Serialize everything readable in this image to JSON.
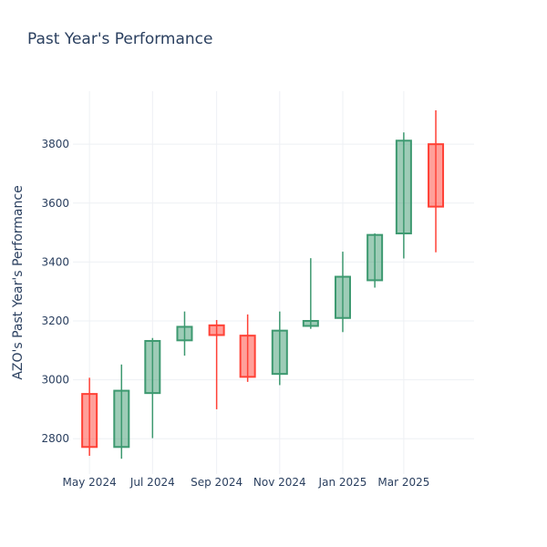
{
  "chart_data": {
    "type": "candlestick",
    "title": "Past Year's Performance",
    "xlabel": "",
    "ylabel": "AZO's Past Year's Performance",
    "ylim": [
      2680,
      3980
    ],
    "yticks": [
      2800,
      3000,
      3200,
      3400,
      3600,
      3800
    ],
    "xlim": [
      "2024-04-15",
      "2025-05-08"
    ],
    "xticks": [
      {
        "date": "2024-05-01",
        "label": "May 2024"
      },
      {
        "date": "2024-07-01",
        "label": "Jul 2024"
      },
      {
        "date": "2024-09-01",
        "label": "Sep 2024"
      },
      {
        "date": "2024-11-01",
        "label": "Nov 2024"
      },
      {
        "date": "2025-01-01",
        "label": "Jan 2025"
      },
      {
        "date": "2025-03-01",
        "label": "Mar 2025"
      }
    ],
    "grid": true,
    "increasing_color": "#3d9970",
    "decreasing_color": "#ff4136",
    "candles": [
      {
        "date": "2024-05-01",
        "open": 2952,
        "high": 3007,
        "low": 2742,
        "close": 2772
      },
      {
        "date": "2024-06-01",
        "open": 2772,
        "high": 3052,
        "low": 2732,
        "close": 2963
      },
      {
        "date": "2024-07-01",
        "open": 2955,
        "high": 3142,
        "low": 2802,
        "close": 3132
      },
      {
        "date": "2024-08-01",
        "open": 3134,
        "high": 3232,
        "low": 3082,
        "close": 3180
      },
      {
        "date": "2024-09-01",
        "open": 3185,
        "high": 3203,
        "low": 2900,
        "close": 3152
      },
      {
        "date": "2024-10-01",
        "open": 3150,
        "high": 3222,
        "low": 2993,
        "close": 3010
      },
      {
        "date": "2024-11-01",
        "open": 3020,
        "high": 3232,
        "low": 2982,
        "close": 3167
      },
      {
        "date": "2024-12-01",
        "open": 3183,
        "high": 3413,
        "low": 3173,
        "close": 3200
      },
      {
        "date": "2025-01-01",
        "open": 3210,
        "high": 3435,
        "low": 3162,
        "close": 3350
      },
      {
        "date": "2025-02-01",
        "open": 3338,
        "high": 3497,
        "low": 3313,
        "close": 3492
      },
      {
        "date": "2025-03-01",
        "open": 3497,
        "high": 3840,
        "low": 3412,
        "close": 3812
      },
      {
        "date": "2025-04-01",
        "open": 3800,
        "high": 3915,
        "low": 3433,
        "close": 3588
      }
    ]
  }
}
